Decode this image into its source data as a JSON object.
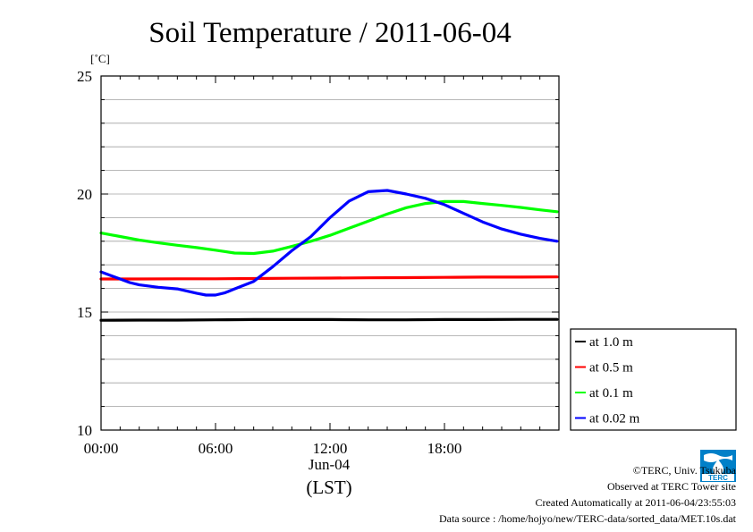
{
  "chart_data": {
    "type": "line",
    "title": "Soil Temperature / 2011-06-04",
    "ylabel": "[˚C]",
    "xlabel": "(LST)",
    "date_label": "Jun-04",
    "ylim": [
      10,
      25
    ],
    "yticks": [
      10,
      15,
      20,
      25
    ],
    "xlim": [
      0,
      24
    ],
    "xticks": [
      {
        "value": 0,
        "label": "00:00"
      },
      {
        "value": 6,
        "label": "06:00"
      },
      {
        "value": 12,
        "label": "12:00"
      },
      {
        "value": 18,
        "label": "18:00"
      }
    ],
    "grid": "horizontal",
    "legend_position": "right",
    "series": [
      {
        "name": "at 1.0 m",
        "color": "#000000",
        "x": [
          0,
          2,
          4,
          6,
          8,
          10,
          12,
          14,
          16,
          18,
          20,
          22,
          23.9
        ],
        "y": [
          14.65,
          14.66,
          14.66,
          14.67,
          14.68,
          14.68,
          14.68,
          14.67,
          14.67,
          14.68,
          14.68,
          14.69,
          14.69
        ]
      },
      {
        "name": "at 0.5 m",
        "color": "#ff0000",
        "x": [
          0,
          2,
          4,
          6,
          8,
          10,
          12,
          14,
          16,
          18,
          20,
          22,
          23.9
        ],
        "y": [
          16.4,
          16.4,
          16.41,
          16.41,
          16.42,
          16.43,
          16.44,
          16.45,
          16.46,
          16.47,
          16.48,
          16.48,
          16.49
        ]
      },
      {
        "name": "at 0.1 m",
        "color": "#00ff00",
        "x": [
          0,
          1,
          2,
          3,
          4,
          5,
          6,
          7,
          8,
          9,
          10,
          11,
          12,
          13,
          14,
          15,
          16,
          17,
          18,
          19,
          20,
          21,
          22,
          23,
          23.9
        ],
        "y": [
          18.35,
          18.2,
          18.05,
          17.93,
          17.83,
          17.73,
          17.62,
          17.5,
          17.48,
          17.58,
          17.78,
          18.0,
          18.25,
          18.55,
          18.85,
          19.15,
          19.42,
          19.6,
          19.68,
          19.68,
          19.6,
          19.52,
          19.43,
          19.33,
          19.25
        ]
      },
      {
        "name": "at 0.02 m",
        "color": "#0000ff",
        "x": [
          0,
          0.5,
          1,
          1.5,
          2,
          3,
          4,
          5,
          5.5,
          6,
          6.5,
          7,
          8,
          9,
          10,
          11,
          12,
          13,
          14,
          15,
          16,
          17,
          18,
          19,
          20,
          21,
          22,
          23,
          23.9
        ],
        "y": [
          16.7,
          16.55,
          16.4,
          16.25,
          16.15,
          16.05,
          15.98,
          15.8,
          15.72,
          15.72,
          15.82,
          15.98,
          16.3,
          16.92,
          17.6,
          18.2,
          19.0,
          19.7,
          20.1,
          20.15,
          20.0,
          19.82,
          19.55,
          19.18,
          18.82,
          18.52,
          18.3,
          18.12,
          18.0
        ]
      }
    ]
  },
  "footer": {
    "copyright": "©TERC, Univ. Tsukuba",
    "observed": "Observed at TERC Tower site",
    "created": "Created Automatically at 2011-06-04/23:55:03",
    "source": "Data source : /home/hojyo/new/TERC-data/sorted_data/MET.10s.dat"
  },
  "logo": {
    "text": "TERC",
    "color": "#0080c8"
  }
}
